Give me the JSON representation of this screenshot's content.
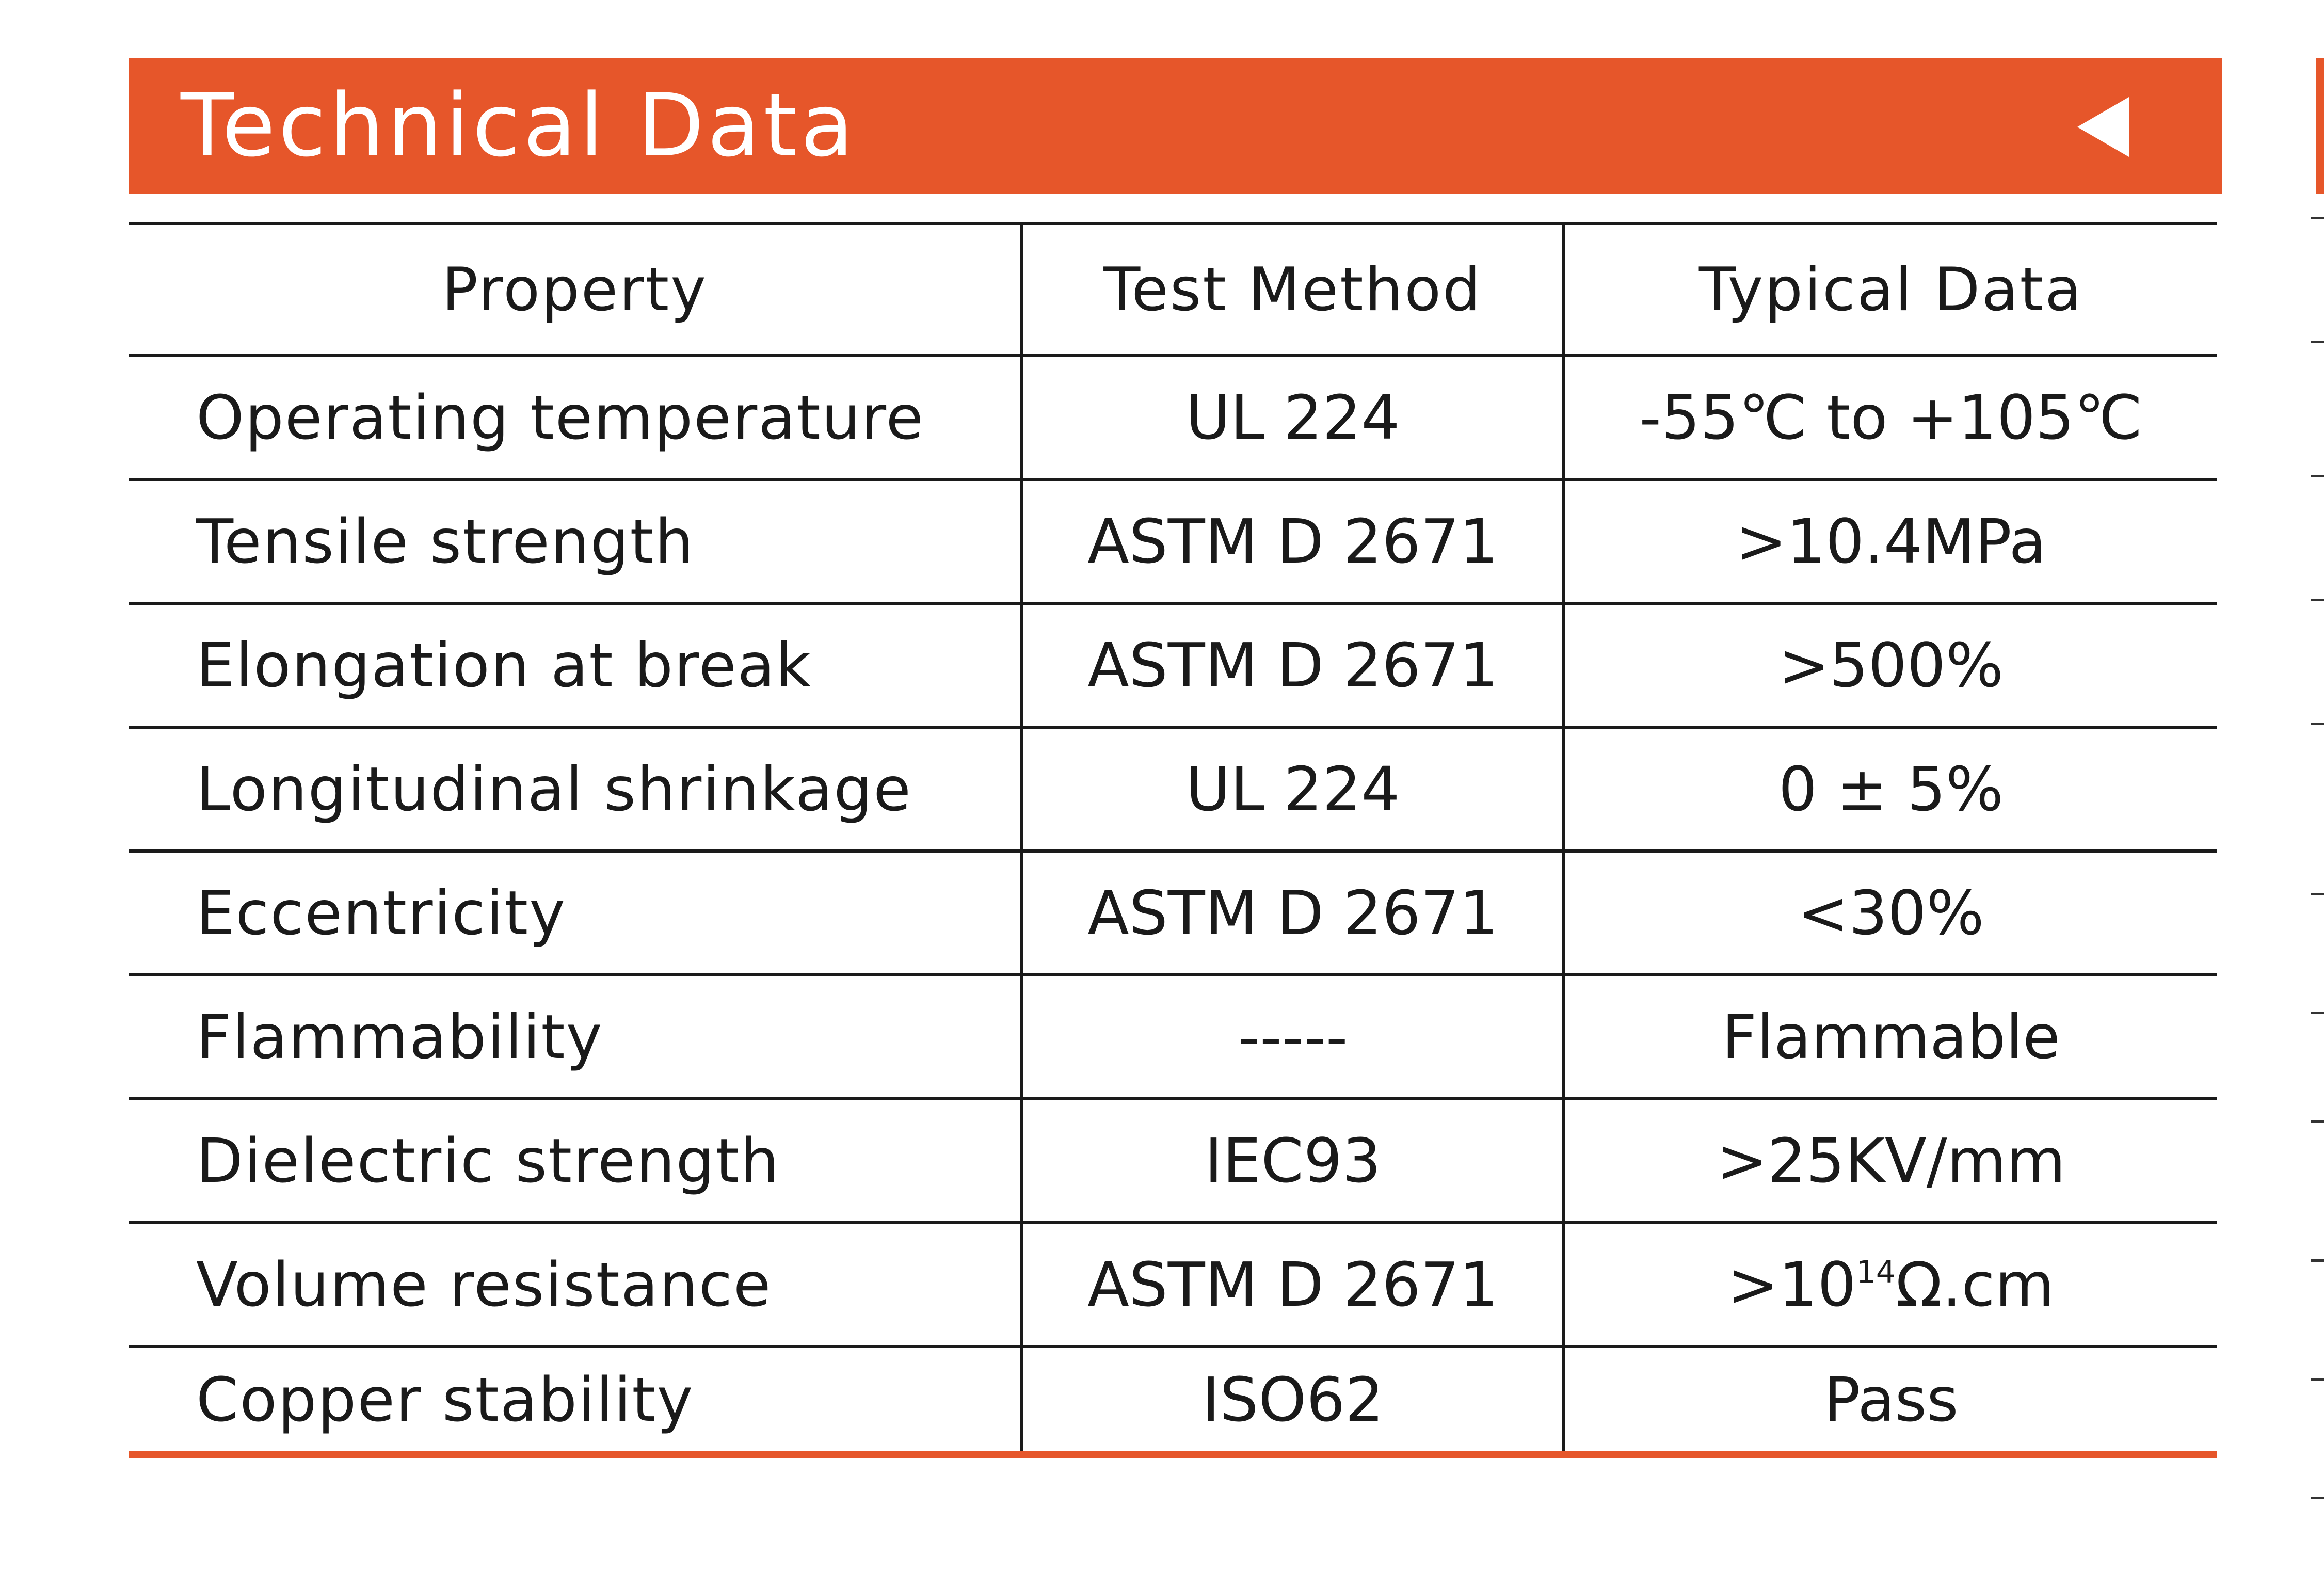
{
  "header": {
    "title": "Technical Data",
    "arrow_icon": "triangle-left-icon",
    "color": "#e6562a"
  },
  "table": {
    "columns": [
      "Property",
      "Test Method",
      "Typical Data"
    ],
    "rows": [
      {
        "property": "Operating temperature",
        "method": "UL 224",
        "typical": "-55℃ to +105℃"
      },
      {
        "property": "Tensile strength",
        "method": "ASTM D 2671",
        "typical": ">10.4MPa"
      },
      {
        "property": "Elongation at break",
        "method": "ASTM D 2671",
        "typical": ">500%"
      },
      {
        "property": "Longitudinal shrinkage",
        "method": "UL 224",
        "typical": "0 ± 5%"
      },
      {
        "property": "Eccentricity",
        "method": "ASTM D 2671",
        "typical": "<30%"
      },
      {
        "property": "Flammability",
        "method": "-----",
        "typical": "Flammable"
      },
      {
        "property": "Dielectric strength",
        "method": "IEC93",
        "typical": ">25KV/mm"
      },
      {
        "property": "Volume resistance",
        "method": "ASTM D 2671",
        "typical_prefix": ">10",
        "typical_sup": "14",
        "typical_suffix": "Ω.cm"
      },
      {
        "property": "Copper stability",
        "method": "ISO62",
        "typical": "Pass"
      }
    ]
  }
}
